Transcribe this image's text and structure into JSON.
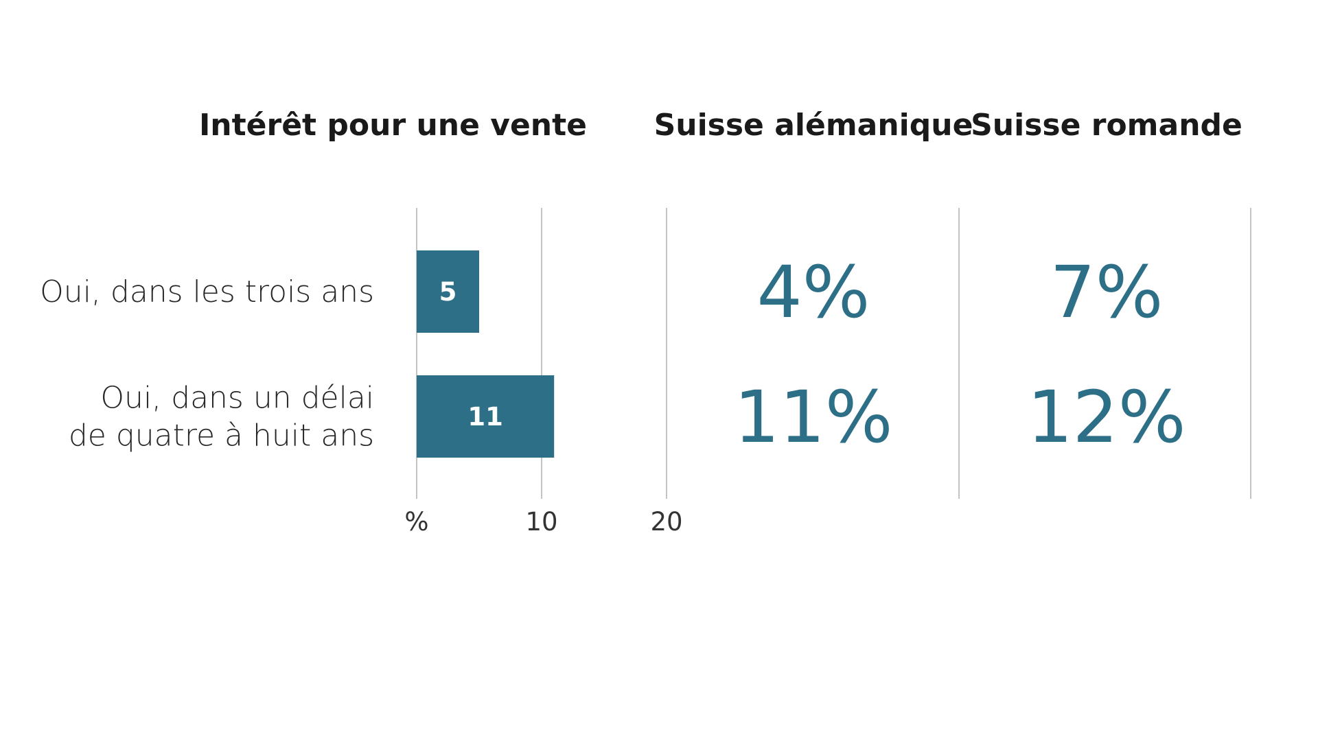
{
  "colors": {
    "bar": "#2e6f88",
    "big_value": "#2e6f88",
    "gridline": "#c4c4c4",
    "heading": "#1a1a1a"
  },
  "chart_data": {
    "type": "bar",
    "orientation": "horizontal",
    "title": "Intérêt pour une vente",
    "categories": [
      [
        "Oui, dans les trois ans"
      ],
      [
        "Oui, dans un délai",
        "de quatre à huit ans"
      ]
    ],
    "values": [
      5,
      11
    ],
    "value_labels": [
      "5",
      "11"
    ],
    "xlim": [
      0,
      20
    ],
    "x_ticks": [
      0,
      10,
      20
    ],
    "x_tick_labels": [
      "%",
      "10",
      "20"
    ],
    "grid": true,
    "regions": [
      {
        "name": "Suisse alémanique",
        "values": [
          4,
          11
        ],
        "labels": [
          "4%",
          "11%"
        ]
      },
      {
        "name": "Suisse romande",
        "values": [
          7,
          12
        ],
        "labels": [
          "7%",
          "12%"
        ]
      }
    ]
  }
}
